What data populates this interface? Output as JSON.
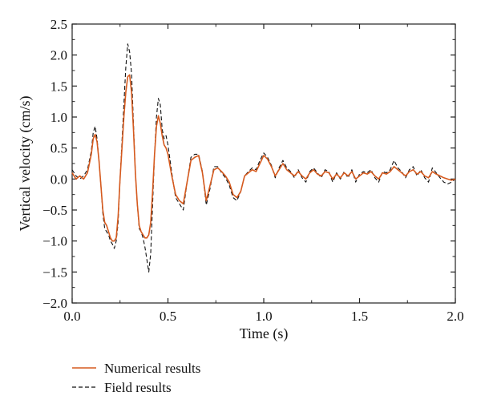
{
  "colors": {
    "numerical": "#d65a1e",
    "field": "#111111",
    "axis": "#222222"
  },
  "chart_data": {
    "type": "line",
    "title": "",
    "xlabel": "Time (s)",
    "ylabel": "Vertical velocity (cm/s)",
    "xlim": [
      0.0,
      2.0
    ],
    "ylim": [
      -2.0,
      2.5
    ],
    "x_ticks": [
      0.0,
      0.5,
      1.0,
      1.5,
      2.0
    ],
    "x_tick_labels": [
      "0.0",
      "0.5",
      "1.0",
      "1.5",
      "2.0"
    ],
    "y_ticks": [
      -2.0,
      -1.5,
      -1.0,
      -0.5,
      0.0,
      0.5,
      1.0,
      1.5,
      2.0,
      2.5
    ],
    "y_tick_labels": [
      "−2.0",
      "−1.5",
      "−1.0",
      "−0.5",
      "0.0",
      "0.5",
      "1.0",
      "1.5",
      "2.0",
      "2.5"
    ],
    "grid": false,
    "legend_position": "below plot, left",
    "series": [
      {
        "name": "Numerical results",
        "style": "solid",
        "color": "#d65a1e",
        "x": [
          0.0,
          0.02,
          0.04,
          0.06,
          0.08,
          0.1,
          0.11,
          0.12,
          0.13,
          0.14,
          0.15,
          0.16,
          0.17,
          0.18,
          0.19,
          0.2,
          0.21,
          0.22,
          0.23,
          0.24,
          0.25,
          0.26,
          0.27,
          0.28,
          0.29,
          0.3,
          0.31,
          0.32,
          0.33,
          0.34,
          0.35,
          0.36,
          0.37,
          0.38,
          0.39,
          0.4,
          0.41,
          0.42,
          0.43,
          0.44,
          0.45,
          0.46,
          0.47,
          0.48,
          0.49,
          0.5,
          0.52,
          0.54,
          0.56,
          0.58,
          0.6,
          0.62,
          0.64,
          0.66,
          0.68,
          0.7,
          0.72,
          0.74,
          0.76,
          0.78,
          0.8,
          0.82,
          0.84,
          0.86,
          0.88,
          0.9,
          0.92,
          0.94,
          0.96,
          0.98,
          1.0,
          1.02,
          1.04,
          1.06,
          1.08,
          1.1,
          1.12,
          1.14,
          1.16,
          1.18,
          1.2,
          1.22,
          1.24,
          1.26,
          1.28,
          1.3,
          1.32,
          1.34,
          1.36,
          1.38,
          1.4,
          1.42,
          1.44,
          1.46,
          1.48,
          1.5,
          1.52,
          1.54,
          1.56,
          1.58,
          1.6,
          1.62,
          1.64,
          1.66,
          1.68,
          1.7,
          1.72,
          1.74,
          1.76,
          1.78,
          1.8,
          1.82,
          1.84,
          1.86,
          1.88,
          1.9,
          1.92,
          1.94,
          1.96,
          1.98,
          2.0
        ],
        "y": [
          0.1,
          0.0,
          0.05,
          0.0,
          0.1,
          0.4,
          0.65,
          0.72,
          0.6,
          0.3,
          -0.1,
          -0.5,
          -0.7,
          -0.75,
          -0.85,
          -0.95,
          -1.0,
          -1.0,
          -0.95,
          -0.6,
          0.0,
          0.5,
          1.0,
          1.4,
          1.65,
          1.68,
          1.4,
          0.8,
          0.1,
          -0.4,
          -0.75,
          -0.85,
          -0.9,
          -0.95,
          -0.95,
          -0.9,
          -0.7,
          -0.2,
          0.4,
          0.85,
          1.02,
          0.9,
          0.7,
          0.55,
          0.5,
          0.4,
          0.05,
          -0.25,
          -0.35,
          -0.4,
          -0.05,
          0.3,
          0.35,
          0.38,
          0.1,
          -0.35,
          -0.1,
          0.15,
          0.18,
          0.12,
          0.05,
          -0.05,
          -0.25,
          -0.3,
          -0.2,
          0.05,
          0.1,
          0.15,
          0.12,
          0.25,
          0.38,
          0.32,
          0.2,
          0.05,
          0.15,
          0.25,
          0.15,
          0.1,
          0.05,
          0.12,
          0.05,
          0.0,
          0.1,
          0.15,
          0.08,
          0.05,
          0.12,
          0.1,
          0.0,
          0.08,
          0.02,
          0.1,
          0.05,
          0.12,
          0.0,
          0.05,
          0.1,
          0.08,
          0.12,
          0.05,
          0.0,
          0.1,
          0.08,
          0.12,
          0.2,
          0.15,
          0.1,
          0.05,
          0.12,
          0.15,
          0.08,
          0.12,
          0.05,
          0.02,
          0.12,
          0.08,
          0.05,
          0.02,
          0.0,
          -0.02,
          0.0
        ]
      },
      {
        "name": "Field results",
        "style": "dashed",
        "color": "#111111",
        "x": [
          0.0,
          0.02,
          0.04,
          0.06,
          0.08,
          0.1,
          0.11,
          0.12,
          0.13,
          0.14,
          0.15,
          0.16,
          0.17,
          0.18,
          0.19,
          0.2,
          0.21,
          0.22,
          0.23,
          0.24,
          0.25,
          0.26,
          0.27,
          0.28,
          0.29,
          0.3,
          0.31,
          0.32,
          0.33,
          0.34,
          0.35,
          0.36,
          0.37,
          0.38,
          0.39,
          0.4,
          0.41,
          0.42,
          0.43,
          0.44,
          0.45,
          0.46,
          0.47,
          0.48,
          0.49,
          0.5,
          0.52,
          0.54,
          0.56,
          0.58,
          0.6,
          0.62,
          0.64,
          0.66,
          0.68,
          0.7,
          0.72,
          0.74,
          0.76,
          0.78,
          0.8,
          0.82,
          0.84,
          0.86,
          0.88,
          0.9,
          0.92,
          0.94,
          0.96,
          0.98,
          1.0,
          1.02,
          1.04,
          1.06,
          1.08,
          1.1,
          1.12,
          1.14,
          1.16,
          1.18,
          1.2,
          1.22,
          1.24,
          1.26,
          1.28,
          1.3,
          1.32,
          1.34,
          1.36,
          1.38,
          1.4,
          1.42,
          1.44,
          1.46,
          1.48,
          1.5,
          1.52,
          1.54,
          1.56,
          1.58,
          1.6,
          1.62,
          1.64,
          1.66,
          1.68,
          1.7,
          1.72,
          1.74,
          1.76,
          1.78,
          1.8,
          1.82,
          1.84,
          1.86,
          1.88,
          1.9,
          1.92,
          1.94,
          1.96,
          1.98,
          2.0
        ],
        "y": [
          0.15,
          0.05,
          0.0,
          0.05,
          0.15,
          0.45,
          0.75,
          0.85,
          0.65,
          0.3,
          -0.1,
          -0.55,
          -0.8,
          -0.85,
          -0.9,
          -1.0,
          -1.05,
          -1.12,
          -1.0,
          -0.7,
          0.0,
          0.6,
          1.2,
          1.8,
          2.18,
          2.05,
          1.7,
          0.9,
          0.1,
          -0.4,
          -0.8,
          -0.85,
          -0.95,
          -1.1,
          -1.3,
          -1.5,
          -1.2,
          -0.4,
          0.4,
          1.0,
          1.3,
          1.2,
          0.8,
          0.65,
          0.7,
          0.55,
          0.1,
          -0.3,
          -0.4,
          -0.5,
          -0.05,
          0.35,
          0.4,
          0.4,
          0.12,
          -0.42,
          -0.15,
          0.2,
          0.2,
          0.1,
          0.02,
          -0.1,
          -0.3,
          -0.35,
          -0.2,
          0.05,
          0.12,
          0.18,
          0.15,
          0.3,
          0.42,
          0.35,
          0.22,
          0.02,
          0.18,
          0.3,
          0.18,
          0.12,
          0.02,
          0.15,
          0.02,
          -0.05,
          0.12,
          0.18,
          0.1,
          0.02,
          0.15,
          0.12,
          -0.05,
          0.1,
          0.0,
          0.12,
          0.02,
          0.15,
          -0.05,
          0.08,
          0.12,
          0.1,
          0.15,
          0.02,
          -0.05,
          0.12,
          0.1,
          0.15,
          0.3,
          0.18,
          0.12,
          0.02,
          0.15,
          0.2,
          0.05,
          0.15,
          0.02,
          -0.05,
          0.18,
          0.1,
          0.02,
          -0.05,
          -0.08,
          -0.05,
          0.0
        ]
      }
    ]
  }
}
